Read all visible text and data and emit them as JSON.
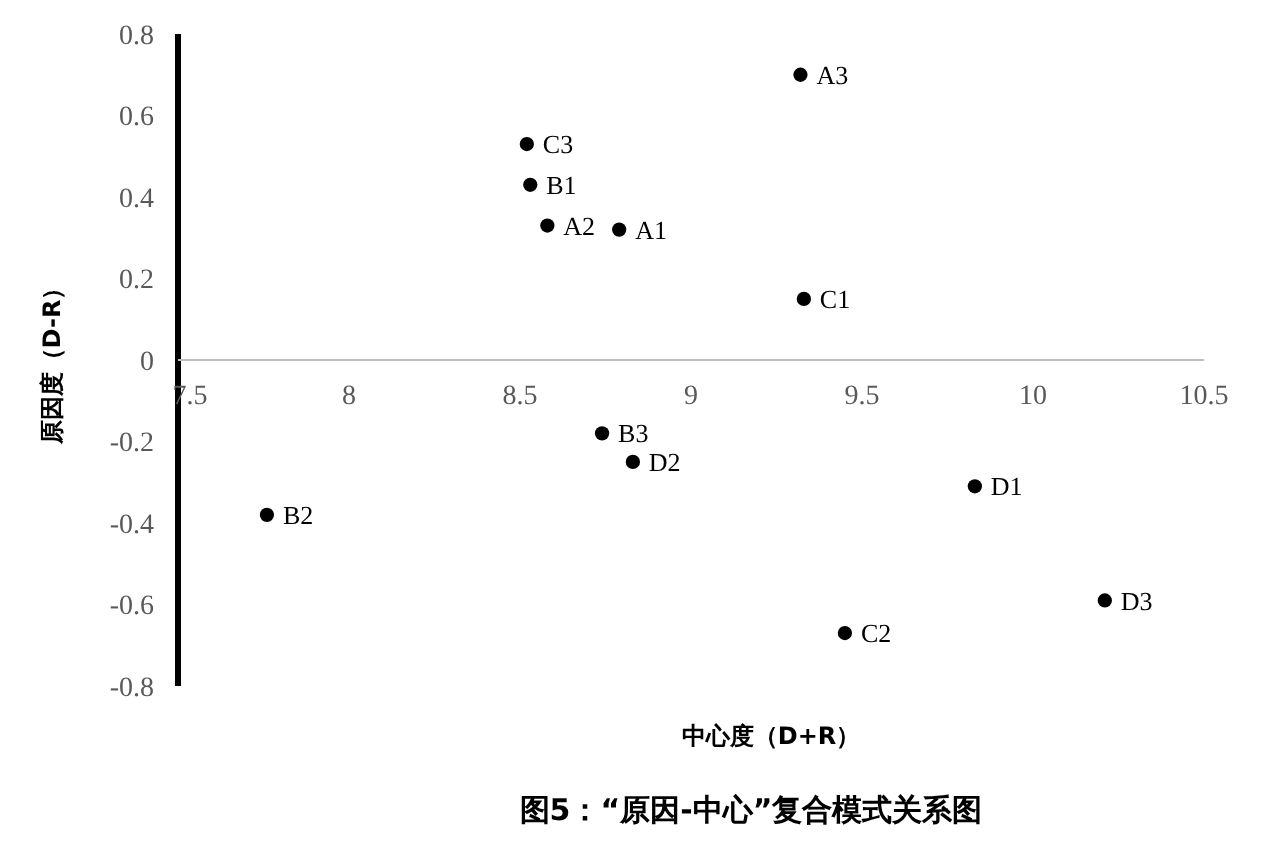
{
  "chart_data": {
    "type": "scatter",
    "title": "图5：“原因-中心”复合模式关系图",
    "xlabel": "中心度（D+R）",
    "ylabel": "原因度（D-R）",
    "x": [
      9.32,
      8.52,
      8.53,
      8.58,
      8.79,
      9.33,
      8.74,
      8.83,
      9.83,
      7.76,
      10.21,
      9.45
    ],
    "series": [
      {
        "color": "#000000",
        "values": [
          0.7,
          0.53,
          0.43,
          0.33,
          0.32,
          0.15,
          -0.18,
          -0.25,
          -0.31,
          -0.38,
          -0.59,
          -0.67
        ]
      }
    ],
    "annotations": [
      {
        "text": "A3",
        "x": 9.32,
        "y": 0.7
      },
      {
        "text": "C3",
        "x": 8.52,
        "y": 0.53
      },
      {
        "text": "B1",
        "x": 8.53,
        "y": 0.43
      },
      {
        "text": "A2",
        "x": 8.58,
        "y": 0.33
      },
      {
        "text": "A1",
        "x": 8.79,
        "y": 0.32
      },
      {
        "text": "C1",
        "x": 9.33,
        "y": 0.15
      },
      {
        "text": "B3",
        "x": 8.74,
        "y": -0.18
      },
      {
        "text": "D2",
        "x": 8.83,
        "y": -0.25
      },
      {
        "text": "D1",
        "x": 9.83,
        "y": -0.31
      },
      {
        "text": "B2",
        "x": 7.76,
        "y": -0.38
      },
      {
        "text": "D3",
        "x": 10.21,
        "y": -0.59
      },
      {
        "text": "C2",
        "x": 9.45,
        "y": -0.67
      }
    ],
    "xlim": [
      7.5,
      10.5
    ],
    "xticks": [
      7.5,
      8,
      8.5,
      9,
      9.5,
      10,
      10.5
    ],
    "ylim": [
      -0.8,
      0.8
    ],
    "yticks": [
      -0.8,
      -0.6,
      -0.4,
      -0.2,
      0,
      0.2,
      0.4,
      0.6,
      0.8
    ],
    "marker": "circle",
    "grid": false
  }
}
